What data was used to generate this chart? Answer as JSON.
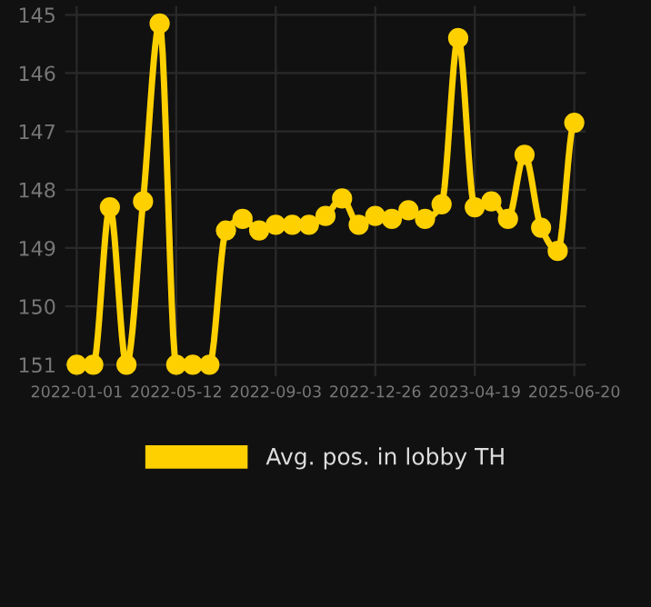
{
  "chart_data": {
    "type": "line",
    "categories": [
      "2022-01-01",
      null,
      null,
      null,
      null,
      null,
      "2022-05-12",
      null,
      null,
      null,
      null,
      null,
      "2022-09-03",
      null,
      null,
      null,
      null,
      null,
      "2022-12-26",
      null,
      null,
      null,
      null,
      null,
      "2023-04-19",
      null,
      null,
      null,
      null,
      null,
      "2025-06-20"
    ],
    "series": [
      {
        "name": "Avg. pos. in lobby TH",
        "color": "#ffd000",
        "values": [
          151,
          151,
          148.3,
          151,
          148.2,
          145.15,
          151,
          151,
          151,
          148.7,
          148.5,
          148.7,
          148.6,
          148.6,
          148.6,
          148.45,
          148.15,
          148.6,
          148.45,
          148.5,
          148.35,
          148.5,
          148.25,
          145.4,
          148.3,
          148.2,
          148.5,
          147.4,
          148.65,
          149.05,
          146.85
        ]
      }
    ],
    "ylim": [
      151.2,
      144.85
    ],
    "yticks": [
      145,
      146,
      147,
      148,
      149,
      150,
      151
    ],
    "grid": true,
    "legend": "bottom",
    "marker": "circle",
    "line_style": "solid"
  }
}
